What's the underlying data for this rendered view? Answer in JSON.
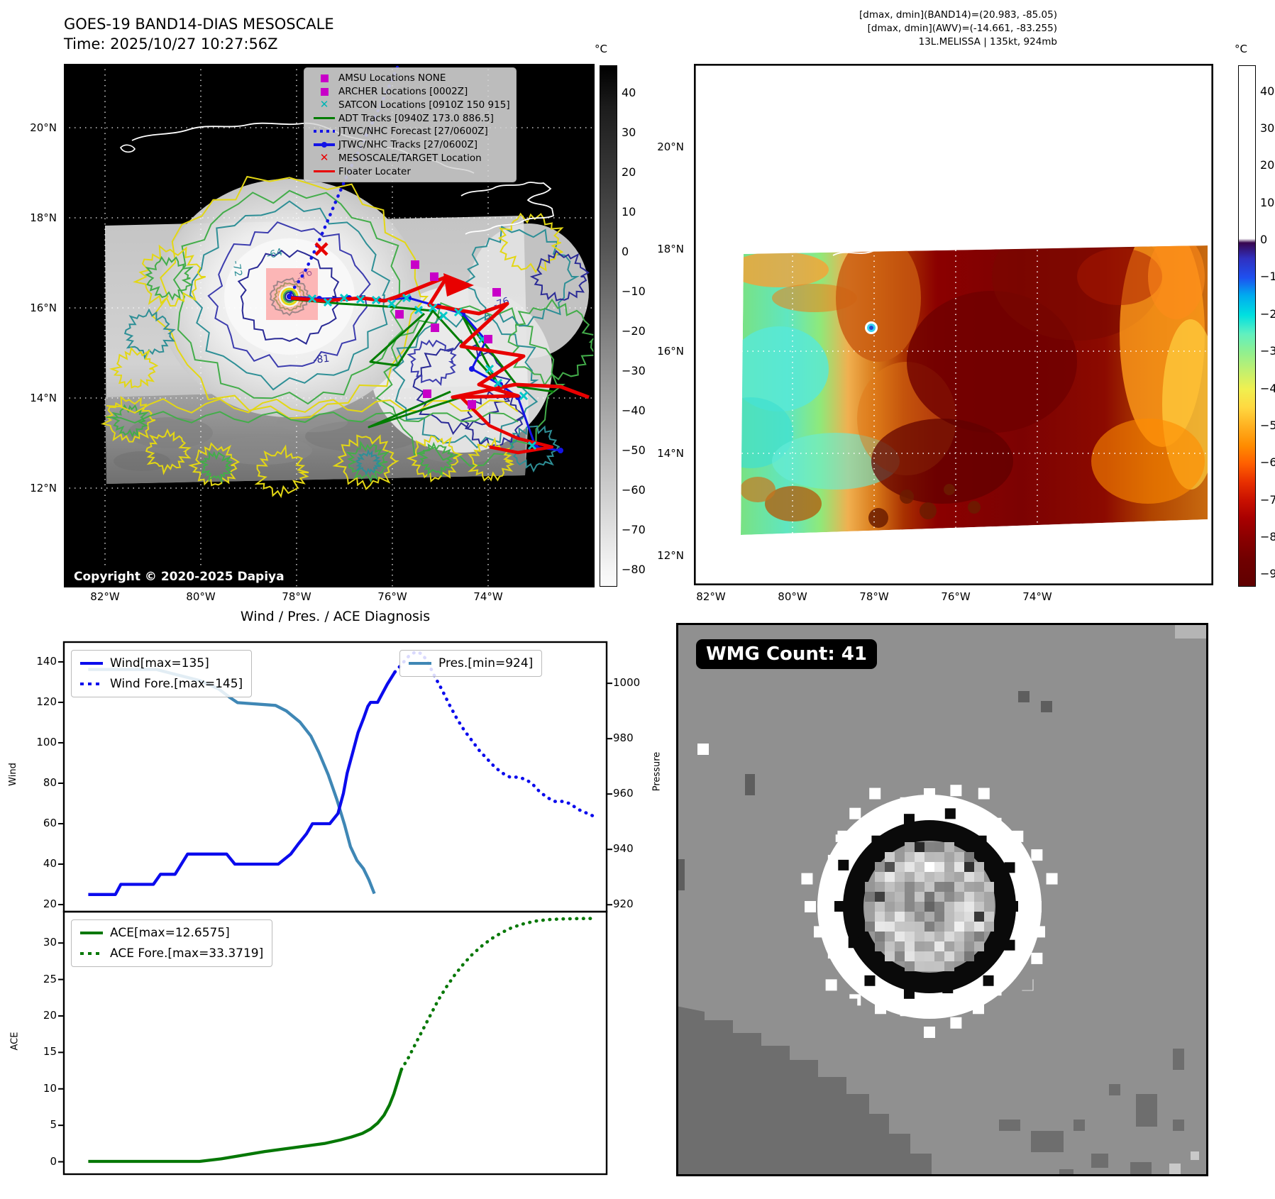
{
  "panel_tl": {
    "title": "GOES-19 BAND14-DIAS MESOSCALE",
    "subtitle": "Time: 2025/10/27 10:27:56Z",
    "copyright": "Copyright © 2020-2025 Dapiya",
    "lat_ticks": [
      "20°N",
      "18°N",
      "16°N",
      "14°N",
      "12°N"
    ],
    "lon_ticks": [
      "82°W",
      "80°W",
      "78°W",
      "76°W",
      "74°W"
    ],
    "colorbar": {
      "unit": "°C",
      "ticks": [
        "40",
        "30",
        "20",
        "10",
        "0",
        "−10",
        "−20",
        "−30",
        "−40",
        "−50",
        "−60",
        "−70",
        "−80"
      ]
    },
    "legend": [
      {
        "label": "AMSU Locations NONE",
        "marker": "square",
        "color": "#c800c8"
      },
      {
        "label": "ARCHER Locations [0002Z]",
        "marker": "square",
        "color": "#c800c8"
      },
      {
        "label": "SATCON Locations [0910Z 150 915]",
        "marker": "x",
        "color": "#00b4b4"
      },
      {
        "label": "ADT Tracks [0940Z 173.0 886.5]",
        "marker": "line",
        "color": "#007d00"
      },
      {
        "label": "JTWC/NHC Forecast [27/0600Z]",
        "marker": "dotted",
        "color": "#1414e6"
      },
      {
        "label": "JTWC/NHC Tracks [27/0600Z]",
        "marker": "line-dot",
        "color": "#1414e6"
      },
      {
        "label": "MESOSCALE/TARGET Location",
        "marker": "x",
        "color": "#e80000"
      },
      {
        "label": "Floater Locater",
        "marker": "line",
        "color": "#e80000"
      }
    ],
    "contour_labels": [
      "-64",
      "-76",
      "-81",
      "-72",
      "-76"
    ]
  },
  "panel_tr": {
    "header_lines": [
      "[dmax, dmin](BAND14)=(20.983, -85.05)",
      "[dmax, dmin](AWV)=(-14.661, -83.255)",
      "13L.MELISSA | 135kt, 924mb"
    ],
    "lat_ticks": [
      "20°N",
      "18°N",
      "16°N",
      "14°N",
      "12°N"
    ],
    "lon_ticks": [
      "82°W",
      "80°W",
      "78°W",
      "76°W",
      "74°W"
    ],
    "colorbar": {
      "unit": "°C",
      "ticks": [
        "40",
        "30",
        "20",
        "10",
        "0",
        "−10",
        "−20",
        "−30",
        "−40",
        "−50",
        "−60",
        "−70",
        "−80",
        "−90"
      ]
    }
  },
  "charts": {
    "title": "Wind / Pres. / ACE Diagnosis"
  },
  "chart_data": [
    {
      "type": "line",
      "title": "Wind / Pres. / ACE Diagnosis",
      "ylabel": "Wind",
      "y2label": "Pressure",
      "ylim": [
        16.5,
        149.8
      ],
      "y2lim": [
        917.5,
        1014.9
      ],
      "yticks": [
        140,
        120,
        100,
        80,
        60,
        40,
        20
      ],
      "y2ticks": [
        1000,
        980,
        960,
        940,
        920
      ],
      "grid": false,
      "series": [
        {
          "name": "Wind[max=135]",
          "axis": "y",
          "style": "solid",
          "color": "#0b0bed",
          "points": [
            [
              0.045,
              25
            ],
            [
              0.095,
              25
            ],
            [
              0.105,
              30
            ],
            [
              0.165,
              30
            ],
            [
              0.178,
              35
            ],
            [
              0.205,
              35
            ],
            [
              0.228,
              45
            ],
            [
              0.3,
              45
            ],
            [
              0.315,
              40
            ],
            [
              0.395,
              40
            ],
            [
              0.418,
              45
            ],
            [
              0.432,
              50
            ],
            [
              0.447,
              55
            ],
            [
              0.458,
              60
            ],
            [
              0.49,
              60
            ],
            [
              0.505,
              65
            ],
            [
              0.515,
              75
            ],
            [
              0.522,
              85
            ],
            [
              0.532,
              95
            ],
            [
              0.542,
              105
            ],
            [
              0.552,
              112
            ],
            [
              0.56,
              118
            ],
            [
              0.565,
              120
            ],
            [
              0.578,
              120
            ],
            [
              0.586,
              124
            ],
            [
              0.596,
              129
            ],
            [
              0.61,
              135
            ]
          ]
        },
        {
          "name": "Wind Fore.[max=145]",
          "axis": "y",
          "style": "dotted",
          "color": "#0b0bed",
          "points": [
            [
              0.61,
              135
            ],
            [
              0.623,
              139
            ],
            [
              0.636,
              143
            ],
            [
              0.648,
              145
            ],
            [
              0.66,
              144
            ],
            [
              0.67,
              140
            ],
            [
              0.683,
              133
            ],
            [
              0.697,
              126
            ],
            [
              0.71,
              119
            ],
            [
              0.724,
              112
            ],
            [
              0.738,
              106
            ],
            [
              0.752,
              101
            ],
            [
              0.766,
              96
            ],
            [
              0.78,
              92
            ],
            [
              0.794,
              88
            ],
            [
              0.808,
              85
            ],
            [
              0.822,
              83
            ],
            [
              0.836,
              83
            ],
            [
              0.85,
              82
            ],
            [
              0.862,
              80
            ],
            [
              0.876,
              76
            ],
            [
              0.89,
              73
            ],
            [
              0.904,
              71
            ],
            [
              0.918,
              71
            ],
            [
              0.932,
              70
            ],
            [
              0.948,
              67
            ],
            [
              0.965,
              65
            ],
            [
              0.982,
              63
            ]
          ]
        },
        {
          "name": "Pres.[min=924]",
          "axis": "y2",
          "style": "solid",
          "color": "#3f87b5",
          "points": [
            [
              0.045,
              1005
            ],
            [
              0.17,
              1005
            ],
            [
              0.21,
              1003
            ],
            [
              0.25,
              1001
            ],
            [
              0.285,
              998
            ],
            [
              0.305,
              995
            ],
            [
              0.32,
              993
            ],
            [
              0.39,
              992
            ],
            [
              0.41,
              990
            ],
            [
              0.435,
              986
            ],
            [
              0.455,
              981
            ],
            [
              0.47,
              975
            ],
            [
              0.487,
              967
            ],
            [
              0.503,
              958
            ],
            [
              0.517,
              949
            ],
            [
              0.528,
              941
            ],
            [
              0.54,
              936
            ],
            [
              0.552,
              933
            ],
            [
              0.562,
              929
            ],
            [
              0.572,
              924
            ]
          ]
        }
      ]
    },
    {
      "type": "line",
      "ylabel": "ACE",
      "ylim": [
        -1.7,
        34.3
      ],
      "yticks": [
        0,
        5,
        10,
        15,
        20,
        25,
        30
      ],
      "grid": false,
      "series": [
        {
          "name": "ACE[max=12.6575]",
          "style": "solid",
          "color": "#067806",
          "points": [
            [
              0.045,
              0.05
            ],
            [
              0.25,
              0.05
            ],
            [
              0.29,
              0.4
            ],
            [
              0.33,
              0.9
            ],
            [
              0.37,
              1.4
            ],
            [
              0.41,
              1.8
            ],
            [
              0.45,
              2.2
            ],
            [
              0.48,
              2.5
            ],
            [
              0.51,
              3.0
            ],
            [
              0.53,
              3.4
            ],
            [
              0.55,
              3.9
            ],
            [
              0.565,
              4.5
            ],
            [
              0.578,
              5.3
            ],
            [
              0.59,
              6.4
            ],
            [
              0.6,
              7.8
            ],
            [
              0.608,
              9.3
            ],
            [
              0.615,
              11.0
            ],
            [
              0.622,
              12.66
            ]
          ]
        },
        {
          "name": "ACE Fore.[max=33.3719]",
          "style": "dotted",
          "color": "#067806",
          "points": [
            [
              0.622,
              12.66
            ],
            [
              0.635,
              14.3
            ],
            [
              0.648,
              16.2
            ],
            [
              0.662,
              18.2
            ],
            [
              0.676,
              20.2
            ],
            [
              0.69,
              22.2
            ],
            [
              0.705,
              24.0
            ],
            [
              0.72,
              25.6
            ],
            [
              0.736,
              27.1
            ],
            [
              0.752,
              28.4
            ],
            [
              0.77,
              29.6
            ],
            [
              0.788,
              30.6
            ],
            [
              0.806,
              31.4
            ],
            [
              0.825,
              32.1
            ],
            [
              0.845,
              32.6
            ],
            [
              0.868,
              33.0
            ],
            [
              0.89,
              33.2
            ],
            [
              0.915,
              33.3
            ],
            [
              0.945,
              33.35
            ],
            [
              0.98,
              33.37
            ]
          ]
        }
      ]
    }
  ],
  "panel_wmg": {
    "badge": "WMG Count: 41"
  },
  "colors": {
    "magenta": "#c800c8",
    "cyan": "#00b4b4",
    "adt_green": "#007d00",
    "track_blue": "#1414e6",
    "red": "#e80000",
    "pres": "#3f87b5",
    "wind": "#0b0bed",
    "ace": "#067806"
  }
}
